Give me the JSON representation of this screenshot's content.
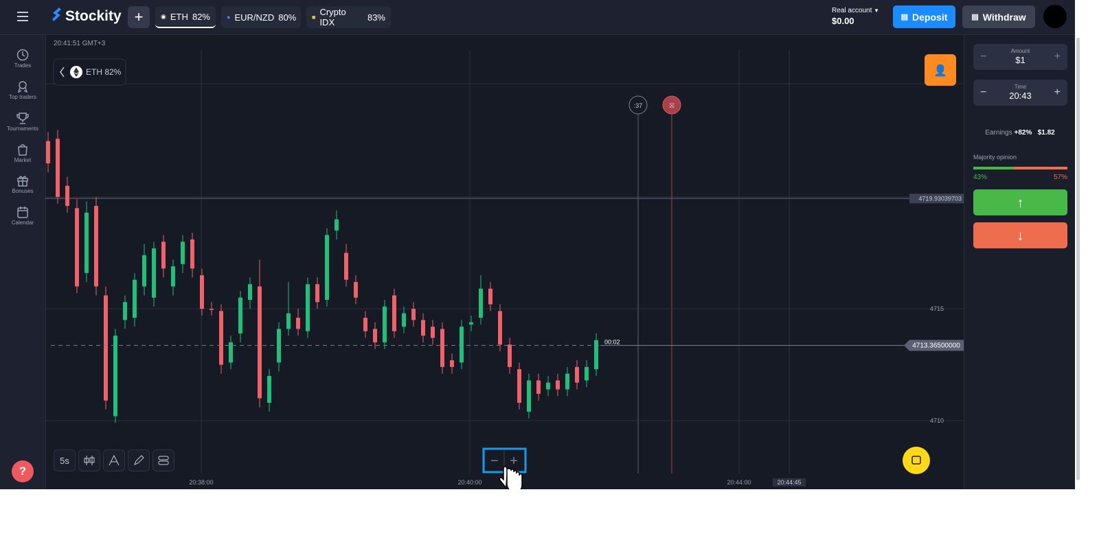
{
  "header": {
    "logo": "Stockity",
    "assets": [
      {
        "name": "ETH",
        "payout": "82%"
      },
      {
        "name": "EUR/NZD",
        "payout": "80%"
      },
      {
        "name": "Crypto IDX",
        "payout": "83%"
      }
    ],
    "account_type": "Real account",
    "balance": "$0.00",
    "deposit": "Deposit",
    "withdraw": "Withdraw"
  },
  "sidebar": [
    "Trades",
    "Top traders",
    "Tournaments",
    "Market",
    "Bonuses",
    "Calendar"
  ],
  "chart_data": {
    "type": "candlestick",
    "clock": "20:41:51 GMT+3",
    "asset": "ETH 82%",
    "ylim": [
      4707.64,
      4727.24
    ],
    "yticks": [
      4710,
      4715
    ],
    "xtick_labels": [
      "20:38:00",
      "20:40:00",
      "20:44:00",
      "20:44:45"
    ],
    "price_line": 4719.93039703,
    "current_price": {
      "value": 4713.365,
      "label": "4713.36500000"
    },
    "candle_timer": "00:02",
    "expiry_countdown": ":37",
    "interval": "5s",
    "colors": {
      "up": "#1fc07a",
      "down": "#f0616a"
    },
    "candles": [
      [
        4722.5,
        4722.9,
        4721.1,
        4721.5
      ],
      [
        4722.6,
        4723.0,
        4719.7,
        4720.0
      ],
      [
        4720.5,
        4720.9,
        4719.3,
        4719.6
      ],
      [
        4719.5,
        4719.9,
        4715.7,
        4716.0
      ],
      [
        4716.6,
        4719.8,
        4716.2,
        4719.3
      ],
      [
        4719.6,
        4720.0,
        4715.6,
        4716.0
      ],
      [
        4715.6,
        4716.0,
        4710.5,
        4710.9
      ],
      [
        4710.2,
        4714.1,
        4709.9,
        4713.8
      ],
      [
        4714.5,
        4715.6,
        4714.1,
        4715.3
      ],
      [
        4714.6,
        4716.6,
        4714.2,
        4716.3
      ],
      [
        4716.0,
        4717.9,
        4715.6,
        4717.4
      ],
      [
        4715.5,
        4718.0,
        4715.1,
        4717.7
      ],
      [
        4718.0,
        4718.3,
        4716.4,
        4716.8
      ],
      [
        4716.0,
        4717.2,
        4715.6,
        4716.9
      ],
      [
        4717.0,
        4718.3,
        4716.6,
        4718.0
      ],
      [
        4718.1,
        4718.4,
        4716.4,
        4716.8
      ],
      [
        4716.5,
        4716.8,
        4714.7,
        4715.0
      ],
      [
        4715.0,
        4715.3,
        4714.7,
        4714.95
      ],
      [
        4714.9,
        4715.2,
        4712.1,
        4712.5
      ],
      [
        4712.6,
        4713.8,
        4712.3,
        4713.5
      ],
      [
        4713.9,
        4715.8,
        4713.5,
        4715.5
      ],
      [
        4715.4,
        4716.4,
        4715.0,
        4716.1
      ],
      [
        4716.0,
        4717.2,
        4710.6,
        4711.0
      ],
      [
        4710.8,
        4712.3,
        4710.4,
        4712.0
      ],
      [
        4712.6,
        4714.4,
        4712.2,
        4714.1
      ],
      [
        4714.1,
        4716.2,
        4713.8,
        4714.8
      ],
      [
        4714.6,
        4715.0,
        4713.8,
        4714.1
      ],
      [
        4714.0,
        4716.4,
        4713.7,
        4716.1
      ],
      [
        4716.1,
        4716.4,
        4715.0,
        4715.3
      ],
      [
        4715.4,
        4718.6,
        4715.1,
        4718.3
      ],
      [
        4718.5,
        4719.4,
        4718.1,
        4719.0
      ],
      [
        4717.5,
        4717.9,
        4716.0,
        4716.3
      ],
      [
        4716.2,
        4716.5,
        4715.2,
        4715.5
      ],
      [
        4714.6,
        4714.9,
        4713.7,
        4714.0
      ],
      [
        4714.1,
        4714.4,
        4713.2,
        4713.5
      ],
      [
        4713.5,
        4715.4,
        4713.2,
        4715.1
      ],
      [
        4715.6,
        4715.9,
        4713.7,
        4714.0
      ],
      [
        4714.2,
        4715.1,
        4713.9,
        4714.8
      ],
      [
        4715.0,
        4715.3,
        4714.2,
        4714.5
      ],
      [
        4714.5,
        4714.8,
        4713.5,
        4713.8
      ],
      [
        4714.2,
        4714.5,
        4713.4,
        4713.7
      ],
      [
        4714.1,
        4714.4,
        4712.1,
        4712.4
      ],
      [
        4712.7,
        4713.0,
        4712.1,
        4712.4
      ],
      [
        4712.6,
        4714.5,
        4712.3,
        4714.2
      ],
      [
        4714.3,
        4714.7,
        4714.0,
        4714.4
      ],
      [
        4714.6,
        4716.5,
        4714.3,
        4715.9
      ],
      [
        4715.9,
        4716.2,
        4714.9,
        4715.2
      ],
      [
        4714.9,
        4715.2,
        4713.1,
        4713.4
      ],
      [
        4713.4,
        4713.7,
        4712.1,
        4712.4
      ],
      [
        4712.3,
        4712.6,
        4710.5,
        4710.8
      ],
      [
        4710.4,
        4712.1,
        4710.1,
        4711.8
      ],
      [
        4711.8,
        4712.1,
        4710.9,
        4711.2
      ],
      [
        4711.4,
        4712.0,
        4711.1,
        4711.7
      ],
      [
        4711.8,
        4712.1,
        4711.1,
        4711.4
      ],
      [
        4711.4,
        4712.4,
        4711.1,
        4712.1
      ],
      [
        4712.4,
        4712.7,
        4711.4,
        4711.7
      ],
      [
        4711.8,
        4712.7,
        4711.5,
        4712.4
      ],
      [
        4712.3,
        4713.9,
        4712.0,
        4713.6
      ]
    ]
  },
  "panel": {
    "amount_label": "Amount",
    "amount": "$1",
    "time_label": "Time",
    "time": "20:43",
    "earnings_label": "Earnings",
    "earnings_pct": "+82%",
    "earnings_value": "$1.82",
    "majority": {
      "title": "Majority opinion",
      "values": [
        43,
        57
      ],
      "value_labels": [
        "43%",
        "57%"
      ],
      "colors": [
        "#48b848",
        "#ee6d4e"
      ]
    }
  }
}
